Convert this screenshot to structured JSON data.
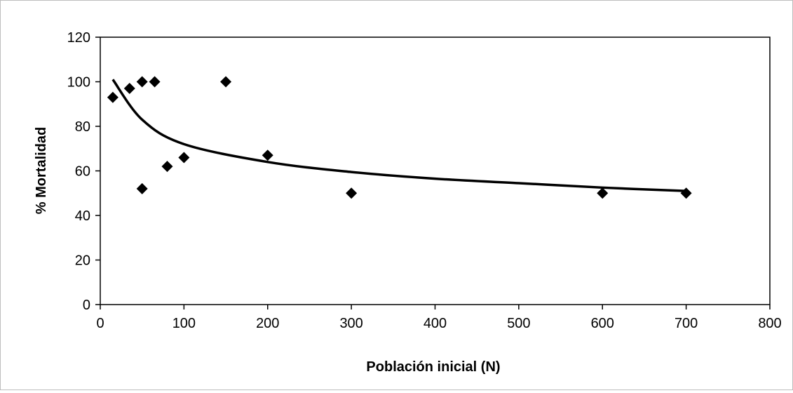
{
  "chart_data": {
    "type": "scatter",
    "xlabel": "Población inicial (N)",
    "ylabel": "% Mortalidad",
    "xlim": [
      0,
      800
    ],
    "ylim": [
      0,
      120
    ],
    "x_ticks": [
      0,
      100,
      200,
      300,
      400,
      500,
      600,
      700,
      800
    ],
    "y_ticks": [
      0,
      20,
      40,
      60,
      80,
      100,
      120
    ],
    "grid": false,
    "legend": "none",
    "series": [
      {
        "marker": "diamond",
        "color": "#000000",
        "points": [
          {
            "x": 15,
            "y": 93
          },
          {
            "x": 35,
            "y": 97
          },
          {
            "x": 50,
            "y": 100
          },
          {
            "x": 50,
            "y": 52
          },
          {
            "x": 65,
            "y": 100
          },
          {
            "x": 80,
            "y": 62
          },
          {
            "x": 100,
            "y": 66
          },
          {
            "x": 150,
            "y": 100
          },
          {
            "x": 200,
            "y": 67
          },
          {
            "x": 300,
            "y": 50
          },
          {
            "x": 600,
            "y": 50
          },
          {
            "x": 700,
            "y": 50
          }
        ]
      }
    ],
    "trendline": {
      "type": "logarithmic",
      "color": "#000000",
      "points": [
        {
          "x": 15,
          "y": 101
        },
        {
          "x": 50,
          "y": 83
        },
        {
          "x": 100,
          "y": 72
        },
        {
          "x": 200,
          "y": 64
        },
        {
          "x": 300,
          "y": 59.5
        },
        {
          "x": 400,
          "y": 56.5
        },
        {
          "x": 500,
          "y": 54.5
        },
        {
          "x": 600,
          "y": 52.5
        },
        {
          "x": 700,
          "y": 51
        }
      ]
    }
  }
}
